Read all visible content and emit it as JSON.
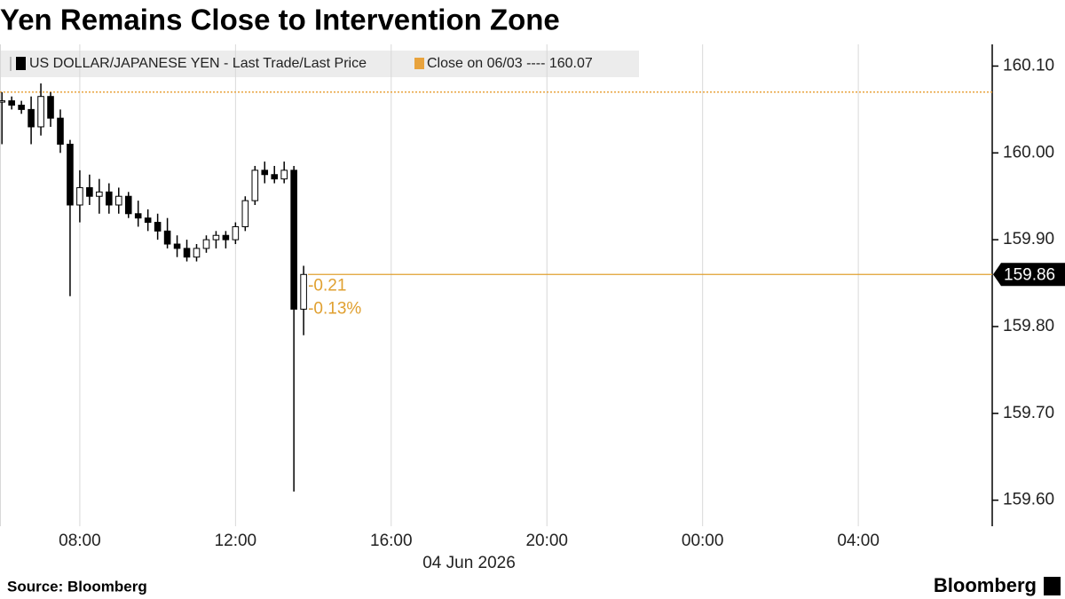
{
  "chart_data": {
    "type": "candlestick",
    "title": "Yen Remains Close to Intervention Zone",
    "source": "Source: Bloomberg",
    "logo": "Bloomberg",
    "x_date_label": "04 Jun 2026",
    "xlim": [
      5.95,
      31.44
    ],
    "xticks": [
      {
        "value": 8,
        "label": "08:00"
      },
      {
        "value": 12,
        "label": "12:00"
      },
      {
        "value": 16,
        "label": "16:00"
      },
      {
        "value": 20,
        "label": "20:00"
      },
      {
        "value": 24,
        "label": "00:00"
      },
      {
        "value": 28,
        "label": "04:00"
      }
    ],
    "ylim": [
      159.57,
      160.125
    ],
    "yticks": [
      {
        "value": 159.6,
        "label": "159.60"
      },
      {
        "value": 159.7,
        "label": "159.70"
      },
      {
        "value": 159.8,
        "label": "159.80"
      },
      {
        "value": 159.9,
        "label": "159.90"
      },
      {
        "value": 160.0,
        "label": "160.00"
      },
      {
        "value": 160.1,
        "label": "160.10"
      }
    ],
    "grid": "x",
    "series": [
      {
        "name": "US DOLLAR/JAPANESE YEN - Last Trade/Last Price",
        "color": "#000000",
        "x": [
          6.0,
          6.25,
          6.5,
          6.75,
          7.0,
          7.25,
          7.5,
          7.75,
          8.0,
          8.25,
          8.5,
          8.75,
          9.0,
          9.25,
          9.5,
          9.75,
          10.0,
          10.25,
          10.5,
          10.75,
          11.0,
          11.25,
          11.5,
          11.75,
          12.0,
          12.25,
          12.5,
          12.75,
          13.0,
          13.25,
          13.5,
          13.75
        ],
        "open": [
          160.06,
          160.06,
          160.055,
          160.05,
          160.03,
          160.065,
          160.04,
          160.01,
          159.94,
          159.96,
          159.95,
          159.955,
          159.94,
          159.95,
          159.93,
          159.925,
          159.92,
          159.91,
          159.895,
          159.89,
          159.88,
          159.89,
          159.9,
          159.905,
          159.9,
          159.915,
          159.945,
          159.98,
          159.975,
          159.97,
          159.98,
          159.82
        ],
        "high": [
          160.07,
          160.065,
          160.06,
          160.065,
          160.08,
          160.07,
          160.05,
          160.015,
          159.98,
          159.975,
          159.97,
          159.965,
          159.96,
          159.955,
          159.945,
          159.935,
          159.93,
          159.925,
          159.905,
          159.9,
          159.895,
          159.905,
          159.91,
          159.91,
          159.92,
          159.95,
          159.985,
          159.99,
          159.985,
          159.99,
          159.985,
          159.87
        ],
        "low": [
          160.01,
          160.05,
          160.045,
          160.01,
          160.02,
          160.03,
          160.0,
          159.835,
          159.92,
          159.94,
          159.93,
          159.93,
          159.93,
          159.925,
          159.915,
          159.91,
          159.9,
          159.89,
          159.88,
          159.875,
          159.875,
          159.885,
          159.89,
          159.89,
          159.895,
          159.91,
          159.94,
          159.965,
          159.965,
          159.965,
          159.61,
          159.79
        ],
        "close": [
          160.06,
          160.055,
          160.05,
          160.03,
          160.065,
          160.04,
          160.01,
          159.94,
          159.96,
          159.95,
          159.955,
          159.94,
          159.95,
          159.93,
          159.925,
          159.92,
          159.91,
          159.895,
          159.89,
          159.88,
          159.89,
          159.9,
          159.905,
          159.9,
          159.915,
          159.945,
          159.98,
          159.975,
          159.97,
          159.98,
          159.82,
          159.86
        ]
      }
    ],
    "reference_line": {
      "name": "Close on 06/03 ---- 160.07",
      "value": 160.07,
      "color": "#e8a33d"
    },
    "last_price": {
      "value": 159.86,
      "color": "#e0a030"
    },
    "annotations": [
      "-0.21",
      "-0.13%"
    ]
  }
}
